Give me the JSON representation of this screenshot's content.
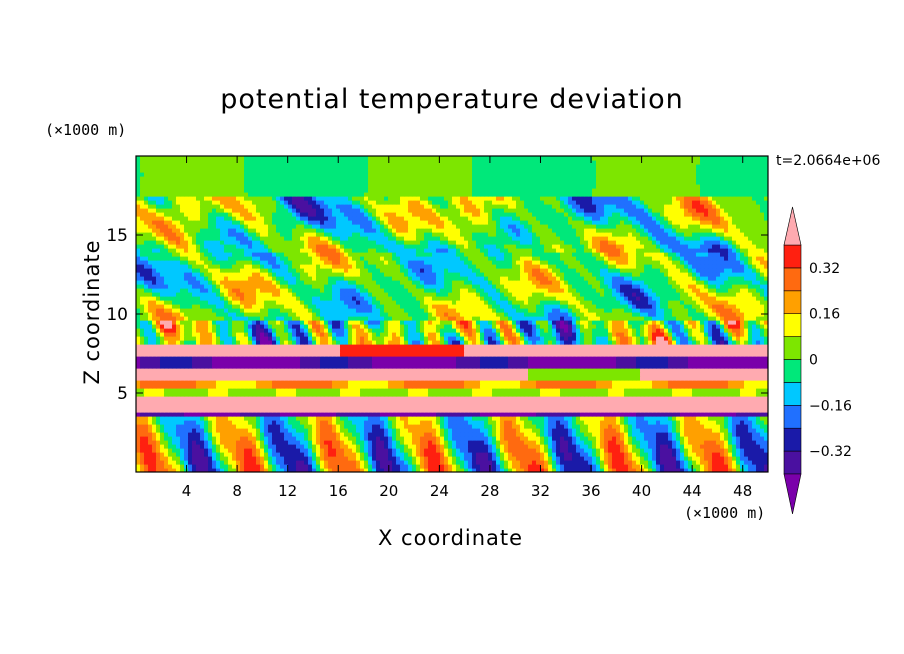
{
  "chart_data": {
    "type": "heatmap",
    "title": "potential temperature deviation",
    "xlabel": "X coordinate",
    "ylabel": "Z coordinate",
    "x_unit": "(×1000 m)",
    "y_unit": "(×1000 m)",
    "time_label": "t=2.0664e+06",
    "xlim": [
      0,
      50
    ],
    "ylim": [
      0,
      20
    ],
    "x_ticks": [
      4,
      8,
      12,
      16,
      20,
      24,
      28,
      32,
      36,
      40,
      44,
      48
    ],
    "y_ticks": [
      5,
      10,
      15
    ],
    "colorbar": {
      "levels": [
        -0.4,
        -0.32,
        -0.24,
        -0.16,
        -0.08,
        0,
        0.08,
        0.16,
        0.24,
        0.32,
        0.4
      ],
      "labels": [
        "0.32",
        "0.16",
        "0",
        "−0.16",
        "−0.32"
      ],
      "label_values": [
        0.32,
        0.16,
        0,
        -0.16,
        -0.32
      ],
      "colors": [
        "#7a00aa",
        "#4a10a0",
        "#1a1aa8",
        "#2070ff",
        "#00c8ff",
        "#00e87a",
        "#7de600",
        "#ffff00",
        "#ffa000",
        "#ff6a10",
        "#ff2010",
        "#ffaab0"
      ],
      "extend": "both"
    },
    "field_description": "Noisy layered field of potential temperature deviation with strong positive (pink/red) and negative (purple) horizontal bands near z=4-8 km and swirling structures aloft."
  }
}
